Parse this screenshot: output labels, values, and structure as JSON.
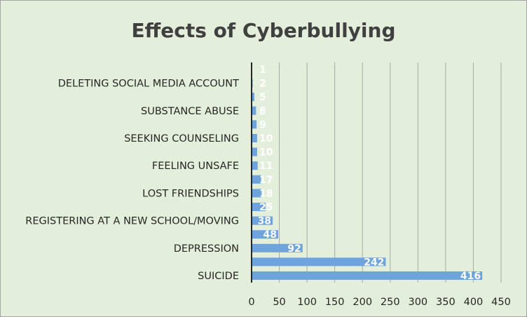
{
  "chart_data": {
    "type": "bar",
    "orientation": "horizontal",
    "title": "Effects of Cyberbullying",
    "xlabel": "",
    "ylabel": "",
    "xlim": [
      0,
      450
    ],
    "x_ticks": [
      0,
      50,
      100,
      150,
      200,
      250,
      300,
      350,
      400,
      450
    ],
    "grid": true,
    "categories": [
      "SUICIDE",
      "",
      "DEPRESSION",
      "",
      "REGISTERING AT A NEW SCHOOL/MOVING",
      "",
      "LOST FRIENDSHIPS",
      "",
      "FEELING UNSAFE",
      "",
      "SEEKING COUNSELING",
      "",
      "SUBSTANCE ABUSE",
      "",
      "DELETING SOCIAL MEDIA ACCOUNT",
      ""
    ],
    "values": [
      416,
      242,
      92,
      48,
      38,
      25,
      18,
      17,
      11,
      10,
      10,
      9,
      8,
      5,
      2,
      1
    ],
    "bar_color": "#6fa3dc",
    "background_color": "#e4efdb",
    "axis_color": "#262626",
    "grid_color": "#a8a8a8"
  }
}
